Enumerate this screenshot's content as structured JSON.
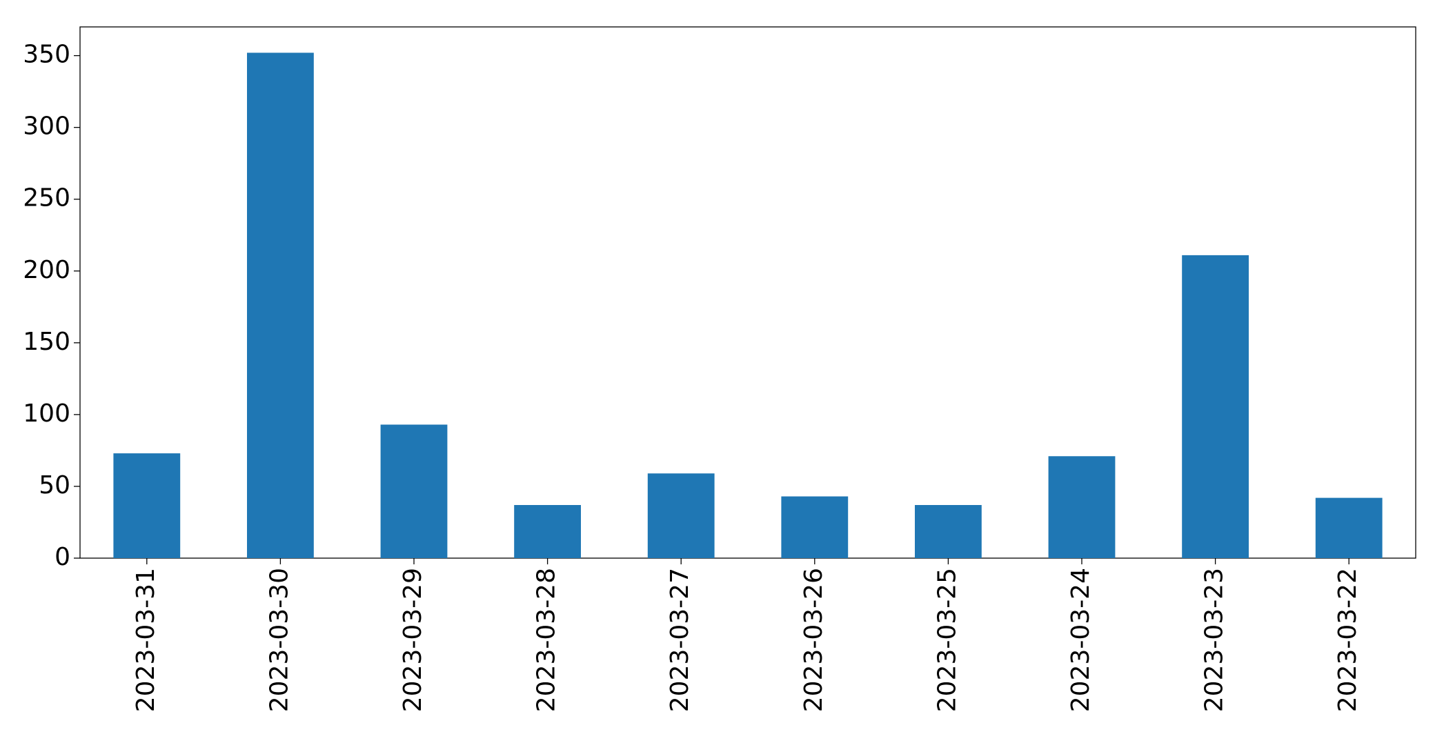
{
  "chart_data": {
    "type": "bar",
    "categories": [
      "2023-03-31",
      "2023-03-30",
      "2023-03-29",
      "2023-03-28",
      "2023-03-27",
      "2023-03-26",
      "2023-03-25",
      "2023-03-24",
      "2023-03-23",
      "2023-03-22"
    ],
    "values": [
      73,
      352,
      93,
      37,
      59,
      43,
      37,
      71,
      211,
      42
    ],
    "color": "#1f77b4",
    "ylim": [
      0,
      370
    ],
    "yticks": [
      0,
      50,
      100,
      150,
      200,
      250,
      300,
      350
    ],
    "grid": false
  }
}
